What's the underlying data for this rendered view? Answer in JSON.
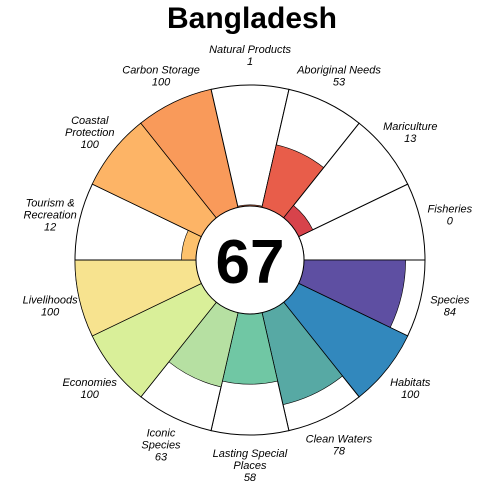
{
  "chart_data": {
    "type": "flower",
    "title": "Bangladesh",
    "center_score": "67",
    "max": 100,
    "petals": [
      {
        "name": "Fisheries",
        "value": 0,
        "label_lines": [
          "Fisheries",
          "0"
        ],
        "color": "#9E0142"
      },
      {
        "name": "Species",
        "value": 84,
        "label_lines": [
          "Species",
          "84"
        ],
        "color": "#5E4FA2"
      },
      {
        "name": "Habitats",
        "value": 100,
        "label_lines": [
          "Habitats",
          "100"
        ],
        "color": "#3288BD"
      },
      {
        "name": "Clean Waters",
        "value": 78,
        "label_lines": [
          "Clean Waters",
          "78"
        ],
        "color": "#57A9A4"
      },
      {
        "name": "Lasting Special Places",
        "value": 58,
        "label_lines": [
          "Lasting Special",
          "Places",
          "58"
        ],
        "color": "#70C7A4"
      },
      {
        "name": "Iconic Species",
        "value": 63,
        "label_lines": [
          "Iconic",
          "Species",
          "63"
        ],
        "color": "#B6E0A2"
      },
      {
        "name": "Economies",
        "value": 100,
        "label_lines": [
          "Economies",
          "100"
        ],
        "color": "#D9EF99"
      },
      {
        "name": "Livelihoods",
        "value": 100,
        "label_lines": [
          "Livelihoods",
          "100"
        ],
        "color": "#F7E38F"
      },
      {
        "name": "Tourism & Recreation",
        "value": 12,
        "label_lines": [
          "Tourism &",
          "Recreation",
          "12"
        ],
        "color": "#FDC16C"
      },
      {
        "name": "Coastal Protection",
        "value": 100,
        "label_lines": [
          "Coastal",
          "Protection",
          "100"
        ],
        "color": "#FDB466"
      },
      {
        "name": "Carbon Storage",
        "value": 100,
        "label_lines": [
          "Carbon Storage",
          "100"
        ],
        "color": "#F99A5A"
      },
      {
        "name": "Natural Products",
        "value": 1,
        "label_lines": [
          "Natural Products",
          "1"
        ],
        "color": "#F47B4F"
      },
      {
        "name": "Aboriginal Needs",
        "value": 53,
        "label_lines": [
          "Aboriginal Needs",
          "53"
        ],
        "color": "#E85D4A"
      },
      {
        "name": "Mariculture",
        "value": 13,
        "label_lines": [
          "Mariculture",
          "13"
        ],
        "color": "#D7434B"
      }
    ]
  }
}
